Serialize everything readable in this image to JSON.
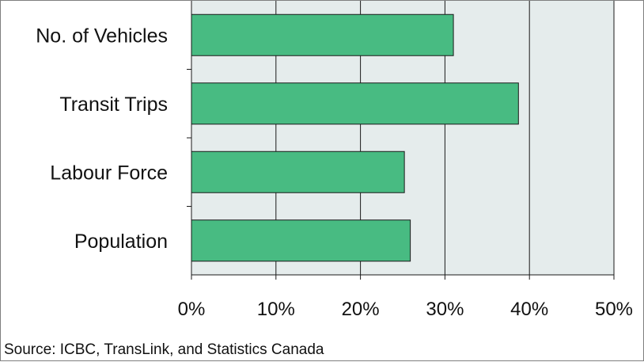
{
  "chart_data": {
    "type": "bar",
    "orientation": "horizontal",
    "categories": [
      "No. of Vehicles",
      "Transit Trips",
      "Labour Force",
      "Population"
    ],
    "series": [
      {
        "values": [
          31,
          38.7,
          25.2,
          25.9
        ]
      }
    ],
    "x_ticks": [
      "0%",
      "10%",
      "20%",
      "30%",
      "40%",
      "50%"
    ],
    "xlim": [
      0,
      50
    ],
    "grid": "vertical",
    "bar_color": "#48bb82",
    "plot_background": "#e5ecec",
    "note": "Source: ICBC, TransLink, and Statistics Canada"
  }
}
